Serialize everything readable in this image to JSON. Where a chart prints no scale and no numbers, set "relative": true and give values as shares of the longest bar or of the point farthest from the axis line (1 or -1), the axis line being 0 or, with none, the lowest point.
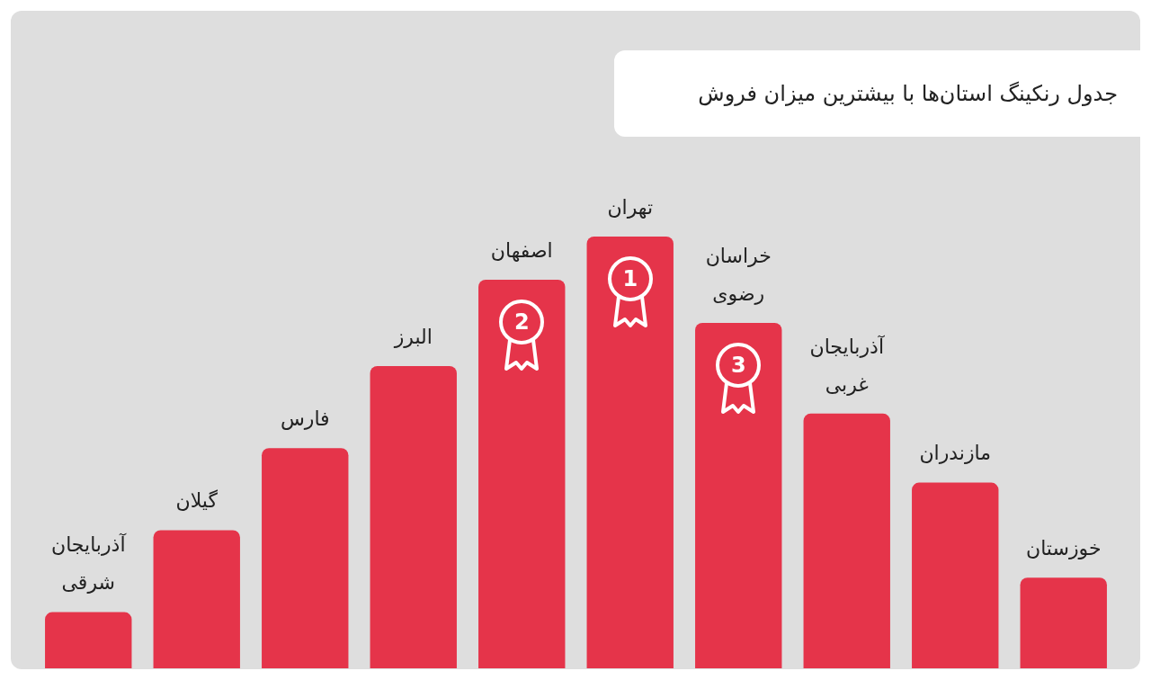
{
  "chart_data": {
    "type": "bar",
    "title": "جدول رنکینگ استان‌ها با بیشترین میزان فروش",
    "relative": true,
    "color": "#e5344a",
    "categories": [
      "آذربایجان شرقی",
      "گیلان",
      "فارس",
      "البرز",
      "اصفهان",
      "تهران",
      "خراسان رضوی",
      "آذربایجان غربی",
      "مازندران",
      "خوزستان"
    ],
    "values": [
      0.13,
      0.32,
      0.51,
      0.7,
      0.9,
      1,
      0.8,
      0.59,
      0.43,
      0.21
    ],
    "annotations": [
      "1",
      "2",
      "3"
    ]
  }
}
